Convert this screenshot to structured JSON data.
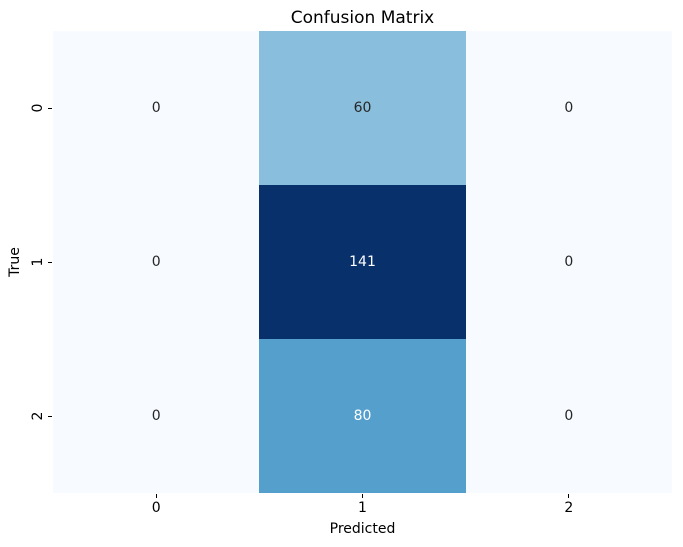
{
  "chart_data": {
    "type": "heatmap",
    "title": "Confusion Matrix",
    "xlabel": "Predicted",
    "ylabel": "True",
    "x_tick_labels": [
      "0",
      "1",
      "2"
    ],
    "y_tick_labels": [
      "0",
      "1",
      "2"
    ],
    "matrix": [
      [
        0,
        60,
        0
      ],
      [
        0,
        141,
        0
      ],
      [
        0,
        80,
        0
      ]
    ],
    "value_range": [
      0,
      141
    ],
    "colormap": "Blues",
    "cell_colors": [
      [
        "#f7fbff",
        "#89bedc",
        "#f7fbff"
      ],
      [
        "#f7fbff",
        "#08306b",
        "#f7fbff"
      ],
      [
        "#f7fbff",
        "#559fcd",
        "#f7fbff"
      ]
    ],
    "text_colors": [
      [
        "#262626",
        "#262626",
        "#262626"
      ],
      [
        "#262626",
        "#ffffff",
        "#262626"
      ],
      [
        "#262626",
        "#ffffff",
        "#262626"
      ]
    ],
    "grid": false,
    "legend": "none"
  },
  "colors": {
    "figure_background": "#ffffff",
    "tick_color": "#000000",
    "text_color": "#000000"
  }
}
